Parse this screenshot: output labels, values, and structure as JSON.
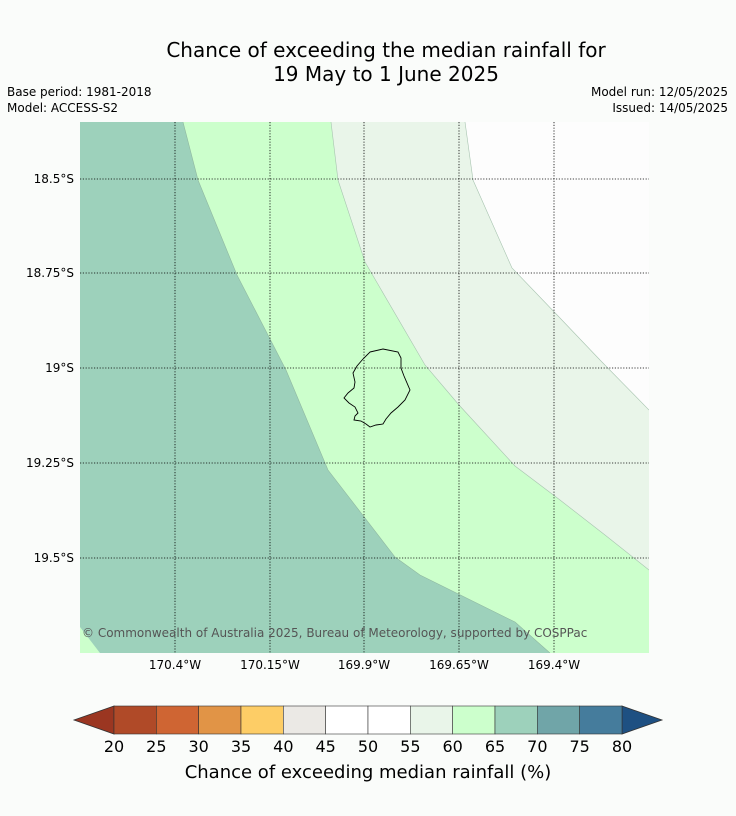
{
  "title_line1": "Chance of exceeding the median rainfall for",
  "title_line2": "19 May to 1 June 2025",
  "meta": {
    "base_period": "Base period: 1981-2018",
    "model": "Model: ACCESS-S2",
    "model_run": "Model run: 12/05/2025",
    "issued": "Issued: 14/05/2025"
  },
  "map": {
    "lat_labels": [
      "18.5°S",
      "18.75°S",
      "19°S",
      "19.25°S",
      "19.5°S"
    ],
    "lon_labels": [
      "170.4°W",
      "170.15°W",
      "169.9°W",
      "169.65°W",
      "169.4°W"
    ],
    "copyright": "© Commonwealth of Australia 2025, Bureau of Meteorology, supported by COSPPac",
    "zone_colors": {
      "band_65_70": "#9dd1bb",
      "band_60_65": "#ccffcc",
      "band_55_60": "#e9f5e9",
      "band_50_55": "#fdfdfd"
    }
  },
  "colorbar": {
    "ticks": [
      "20",
      "25",
      "30",
      "35",
      "40",
      "45",
      "50",
      "55",
      "60",
      "65",
      "70",
      "75",
      "80"
    ],
    "colors": [
      "#b04a28",
      "#cf6533",
      "#e19446",
      "#fdcd66",
      "#ebe9e5",
      "#ffffff",
      "#ffffff",
      "#e9f5e9",
      "#ccffcc",
      "#9dd1bb",
      "#70a5a8",
      "#457c9c"
    ],
    "under_color": "#9b3621",
    "over_color": "#1e5082",
    "label": "Chance of exceeding median rainfall (%)"
  }
}
